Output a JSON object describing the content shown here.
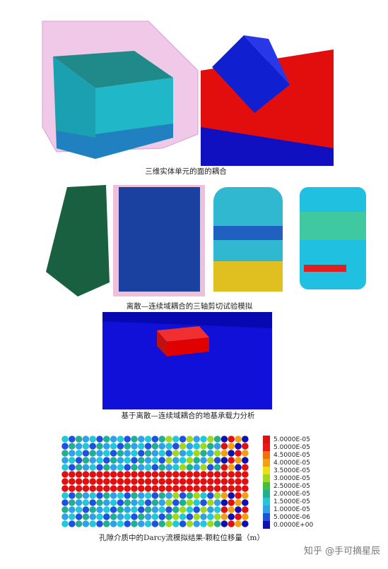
{
  "figures": [
    {
      "caption": "三维实体单元的面的耦合"
    },
    {
      "caption": "离散—连续域耦合的三轴剪切试验模拟"
    },
    {
      "caption": "基于离散—连续域耦合的地基承载力分析"
    },
    {
      "caption": "孔隙介质中的Darcy流模拟结果-颗粒位移量（m）",
      "legend": {
        "labels": [
          "5.0000E-05",
          "5.0000E-05",
          "4.5000E-05",
          "4.0000E-05",
          "3.5000E-05",
          "3.0000E-05",
          "2.5000E-05",
          "2.0000E-05",
          "1.5000E-05",
          "1.0000E-05",
          "5.0000E-06",
          "0.0000E+00"
        ],
        "colors": [
          "#e01010",
          "#e81818",
          "#f07010",
          "#f0a010",
          "#e8e010",
          "#a0d820",
          "#40c040",
          "#20b090",
          "#20c8d8",
          "#30a0e8",
          "#2050e0",
          "#1010b0"
        ]
      }
    }
  ],
  "watermark": "知乎 @手可摘星辰"
}
